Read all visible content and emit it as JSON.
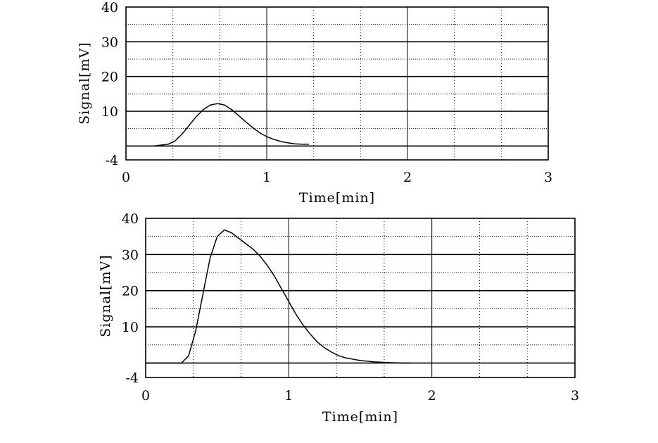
{
  "chart_data": [
    {
      "type": "line",
      "xlabel": "Time[min]",
      "ylabel": "Signal[mV]",
      "xlim": [
        0,
        3
      ],
      "ylim": [
        -4,
        40
      ],
      "x_ticks": [
        "0",
        "1",
        "2",
        "3"
      ],
      "y_ticks": [
        "-4",
        "10",
        "20",
        "30",
        "40"
      ],
      "grid": true,
      "series": [
        {
          "x": [
            0.0,
            0.2,
            0.3,
            0.35,
            0.4,
            0.45,
            0.5,
            0.55,
            0.6,
            0.65,
            0.7,
            0.75,
            0.8,
            0.85,
            0.9,
            0.95,
            1.0,
            1.05,
            1.1,
            1.15,
            1.2,
            1.25,
            1.3
          ],
          "y": [
            0.0,
            0.0,
            0.5,
            1.5,
            3.5,
            6.0,
            8.5,
            10.5,
            11.8,
            12.2,
            11.8,
            10.5,
            8.8,
            7.0,
            5.3,
            3.8,
            2.7,
            1.9,
            1.3,
            0.9,
            0.6,
            0.5,
            0.5
          ]
        }
      ]
    },
    {
      "type": "line",
      "xlabel": "Time[min]",
      "ylabel": "Signal[mV]",
      "xlim": [
        0,
        3
      ],
      "ylim": [
        -4,
        40
      ],
      "x_ticks": [
        "0",
        "1",
        "2",
        "3"
      ],
      "y_ticks": [
        "-4",
        "10",
        "20",
        "30",
        "40"
      ],
      "grid": true,
      "series": [
        {
          "x": [
            0.0,
            0.25,
            0.3,
            0.35,
            0.4,
            0.45,
            0.5,
            0.55,
            0.6,
            0.65,
            0.7,
            0.75,
            0.8,
            0.85,
            0.9,
            0.95,
            1.0,
            1.05,
            1.1,
            1.15,
            1.2,
            1.25,
            1.3,
            1.35,
            1.4,
            1.5,
            1.6,
            1.7,
            1.8,
            1.85
          ],
          "y": [
            0.0,
            0.0,
            2.0,
            9.0,
            19.0,
            29.0,
            35.0,
            36.8,
            36.0,
            34.5,
            33.0,
            31.5,
            29.5,
            27.0,
            24.0,
            20.5,
            17.0,
            13.5,
            10.5,
            8.0,
            5.8,
            4.2,
            3.0,
            2.0,
            1.4,
            0.7,
            0.3,
            0.1,
            0.0,
            0.0
          ]
        }
      ]
    }
  ]
}
